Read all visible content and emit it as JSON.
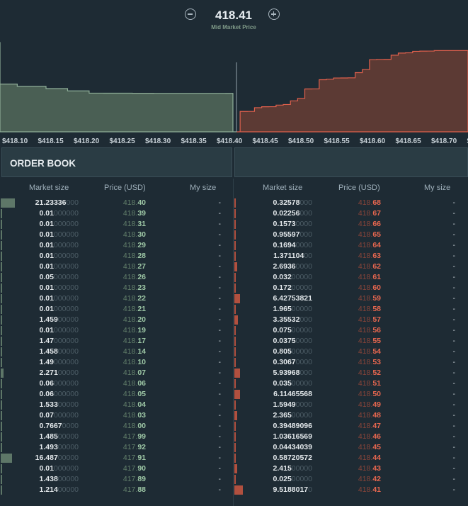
{
  "header": {
    "mid_price": "418.41",
    "mid_label": "Mid Market Price",
    "minus_icon": "minus-circle-icon",
    "plus_icon": "plus-circle-icon"
  },
  "chart_data": {
    "type": "area",
    "x_ticks": [
      "$418.10",
      "$418.15",
      "$418.20",
      "$418.25",
      "$418.30",
      "$418.35",
      "$418.40",
      "$418.45",
      "$418.50",
      "$418.55",
      "$418.60",
      "$418.65",
      "$418.70",
      "$"
    ],
    "x_range": [
      418.076,
      418.727
    ],
    "mid": 418.405,
    "bid_color": "#4a5f54",
    "bid_line": "#8fae98",
    "ask_color": "#5c3a34",
    "ask_line": "#e0604c"
  },
  "order_book": {
    "title": "ORDER BOOK",
    "columns": {
      "market_size": "Market size",
      "price": "Price (USD)",
      "my_size": "My size"
    },
    "bids": [
      {
        "size": "21.23336",
        "pad": "000",
        "price": "418.40",
        "my": "-",
        "depth": 0.45
      },
      {
        "size": "0.01",
        "pad": "000000",
        "price": "418.39",
        "my": "-",
        "depth": 0
      },
      {
        "size": "0.01",
        "pad": "000000",
        "price": "418.31",
        "my": "-",
        "depth": 0
      },
      {
        "size": "0.01",
        "pad": "000000",
        "price": "418.30",
        "my": "-",
        "depth": 0
      },
      {
        "size": "0.01",
        "pad": "000000",
        "price": "418.29",
        "my": "-",
        "depth": 0
      },
      {
        "size": "0.01",
        "pad": "000000",
        "price": "418.28",
        "my": "-",
        "depth": 0
      },
      {
        "size": "0.01",
        "pad": "000000",
        "price": "418.27",
        "my": "-",
        "depth": 0
      },
      {
        "size": "0.05",
        "pad": "000000",
        "price": "418.26",
        "my": "-",
        "depth": 0
      },
      {
        "size": "0.01",
        "pad": "000000",
        "price": "418.23",
        "my": "-",
        "depth": 0
      },
      {
        "size": "0.01",
        "pad": "000000",
        "price": "418.22",
        "my": "-",
        "depth": 0
      },
      {
        "size": "0.01",
        "pad": "000000",
        "price": "418.21",
        "my": "-",
        "depth": 0
      },
      {
        "size": "1.459",
        "pad": "00000",
        "price": "418.20",
        "my": "-",
        "depth": 0
      },
      {
        "size": "0.01",
        "pad": "000000",
        "price": "418.19",
        "my": "-",
        "depth": 0
      },
      {
        "size": "1.47",
        "pad": "000000",
        "price": "418.17",
        "my": "-",
        "depth": 0
      },
      {
        "size": "1.458",
        "pad": "00000",
        "price": "418.14",
        "my": "-",
        "depth": 0
      },
      {
        "size": "1.49",
        "pad": "000000",
        "price": "418.10",
        "my": "-",
        "depth": 0
      },
      {
        "size": "2.271",
        "pad": "00000",
        "price": "418.07",
        "my": "-",
        "depth": 0.05
      },
      {
        "size": "0.06",
        "pad": "000000",
        "price": "418.06",
        "my": "-",
        "depth": 0
      },
      {
        "size": "0.06",
        "pad": "000000",
        "price": "418.05",
        "my": "-",
        "depth": 0
      },
      {
        "size": "1.533",
        "pad": "00000",
        "price": "418.04",
        "my": "-",
        "depth": 0
      },
      {
        "size": "0.07",
        "pad": "000000",
        "price": "418.03",
        "my": "-",
        "depth": 0
      },
      {
        "size": "0.7667",
        "pad": "0000",
        "price": "418.00",
        "my": "-",
        "depth": 0
      },
      {
        "size": "1.485",
        "pad": "00000",
        "price": "417.99",
        "my": "-",
        "depth": 0
      },
      {
        "size": "1.493",
        "pad": "00000",
        "price": "417.92",
        "my": "-",
        "depth": 0
      },
      {
        "size": "16.487",
        "pad": "00000",
        "price": "417.91",
        "my": "-",
        "depth": 0.35
      },
      {
        "size": "0.01",
        "pad": "000000",
        "price": "417.90",
        "my": "-",
        "depth": 0
      },
      {
        "size": "1.438",
        "pad": "00000",
        "price": "417.89",
        "my": "-",
        "depth": 0
      },
      {
        "size": "1.214",
        "pad": "00000",
        "price": "417.88",
        "my": "-",
        "depth": 0
      }
    ],
    "asks": [
      {
        "size": "0.32578",
        "pad": "000",
        "price": "418.68",
        "my": "-",
        "depth": 0
      },
      {
        "size": "0.02256",
        "pad": "000",
        "price": "418.67",
        "my": "-",
        "depth": 0
      },
      {
        "size": "0.1573",
        "pad": "0000",
        "price": "418.66",
        "my": "-",
        "depth": 0
      },
      {
        "size": "0.95597",
        "pad": "000",
        "price": "418.65",
        "my": "-",
        "depth": 0
      },
      {
        "size": "0.1694",
        "pad": "0000",
        "price": "418.64",
        "my": "-",
        "depth": 0
      },
      {
        "size": "1.371104",
        "pad": "00",
        "price": "418.63",
        "my": "-",
        "depth": 0
      },
      {
        "size": "2.6936",
        "pad": "0000",
        "price": "418.62",
        "my": "-",
        "depth": 0.05
      },
      {
        "size": "0.032",
        "pad": "00000",
        "price": "418.61",
        "my": "-",
        "depth": 0
      },
      {
        "size": "0.172",
        "pad": "00000",
        "price": "418.60",
        "my": "-",
        "depth": 0
      },
      {
        "size": "6.42753821",
        "pad": "",
        "price": "418.59",
        "my": "-",
        "depth": 0.15
      },
      {
        "size": "1.965",
        "pad": "00000",
        "price": "418.58",
        "my": "-",
        "depth": 0
      },
      {
        "size": "3.35532",
        "pad": "000",
        "price": "418.57",
        "my": "-",
        "depth": 0.07
      },
      {
        "size": "0.075",
        "pad": "00000",
        "price": "418.56",
        "my": "-",
        "depth": 0
      },
      {
        "size": "0.0375",
        "pad": "0000",
        "price": "418.55",
        "my": "-",
        "depth": 0
      },
      {
        "size": "0.805",
        "pad": "00000",
        "price": "418.54",
        "my": "-",
        "depth": 0
      },
      {
        "size": "0.3067",
        "pad": "0000",
        "price": "418.53",
        "my": "-",
        "depth": 0
      },
      {
        "size": "5.93968",
        "pad": "000",
        "price": "418.52",
        "my": "-",
        "depth": 0.15
      },
      {
        "size": "0.035",
        "pad": "00000",
        "price": "418.51",
        "my": "-",
        "depth": 0
      },
      {
        "size": "6.11465568",
        "pad": "",
        "price": "418.50",
        "my": "-",
        "depth": 0.15
      },
      {
        "size": "1.5949",
        "pad": "0000",
        "price": "418.49",
        "my": "-",
        "depth": 0
      },
      {
        "size": "2.365",
        "pad": "00000",
        "price": "418.48",
        "my": "-",
        "depth": 0.05
      },
      {
        "size": "0.39489096",
        "pad": "",
        "price": "418.47",
        "my": "-",
        "depth": 0
      },
      {
        "size": "1.03616569",
        "pad": "",
        "price": "418.46",
        "my": "-",
        "depth": 0
      },
      {
        "size": "0.04434039",
        "pad": "",
        "price": "418.45",
        "my": "-",
        "depth": 0
      },
      {
        "size": "0.58720572",
        "pad": "",
        "price": "418.44",
        "my": "-",
        "depth": 0
      },
      {
        "size": "2.415",
        "pad": "00000",
        "price": "418.43",
        "my": "-",
        "depth": 0.05
      },
      {
        "size": "0.025",
        "pad": "00000",
        "price": "418.42",
        "my": "-",
        "depth": 0
      },
      {
        "size": "9.5188017",
        "pad": "0",
        "price": "418.41",
        "my": "-",
        "depth": 0.25
      }
    ]
  }
}
